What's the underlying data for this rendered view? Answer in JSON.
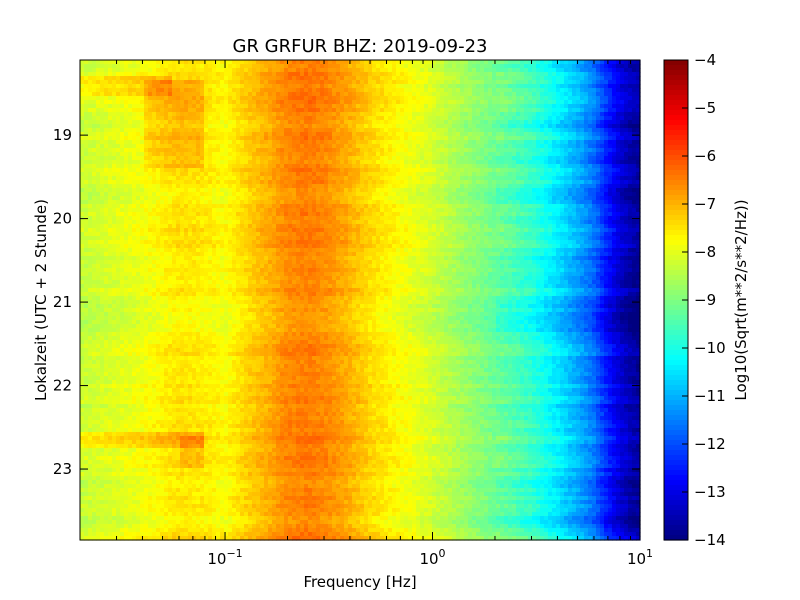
{
  "chart_data": {
    "type": "heatmap",
    "title": "GR GRFUR BHZ: 2019-09-23",
    "xlabel": "Frequency [Hz]",
    "ylabel": "Lokalzeit (UTC + 2 Stunde)",
    "x_scale": "log",
    "xlim": [
      0.02,
      10
    ],
    "x_ticks": [
      {
        "value": 0.1,
        "base": "10",
        "exp": "−1"
      },
      {
        "value": 1,
        "base": "10",
        "exp": "0"
      },
      {
        "value": 10,
        "base": "10",
        "exp": "1"
      }
    ],
    "ylim": [
      18.1,
      23.85
    ],
    "y_inverted": true,
    "y_ticks": [
      19,
      20,
      21,
      22,
      23
    ],
    "y_tick_labels": [
      "19",
      "20",
      "21",
      "22",
      "23"
    ],
    "colorbar": {
      "label": "Log10(Sqrt(m**2/s**2/Hz))",
      "colormap": "jet",
      "range": [
        -14,
        -4
      ],
      "ticks": [
        -4,
        -5,
        -6,
        -7,
        -8,
        -9,
        -10,
        -11,
        -12,
        -13,
        -14
      ],
      "tick_labels": [
        "−4",
        "−5",
        "−6",
        "−7",
        "−8",
        "−9",
        "−10",
        "−11",
        "−12",
        "−13",
        "−14"
      ]
    },
    "spectrum_profile": [
      {
        "freq": 0.02,
        "value": -8.3
      },
      {
        "freq": 0.04,
        "value": -7.9
      },
      {
        "freq": 0.06,
        "value": -7.5
      },
      {
        "freq": 0.08,
        "value": -7.6
      },
      {
        "freq": 0.1,
        "value": -7.8
      },
      {
        "freq": 0.13,
        "value": -7.3
      },
      {
        "freq": 0.17,
        "value": -6.9
      },
      {
        "freq": 0.2,
        "value": -6.6
      },
      {
        "freq": 0.25,
        "value": -6.5
      },
      {
        "freq": 0.3,
        "value": -6.6
      },
      {
        "freq": 0.4,
        "value": -7.0
      },
      {
        "freq": 0.5,
        "value": -7.4
      },
      {
        "freq": 0.7,
        "value": -7.8
      },
      {
        "freq": 1.0,
        "value": -8.2
      },
      {
        "freq": 1.5,
        "value": -8.8
      },
      {
        "freq": 2.0,
        "value": -9.2
      },
      {
        "freq": 3.0,
        "value": -9.8
      },
      {
        "freq": 4.0,
        "value": -10.5
      },
      {
        "freq": 5.0,
        "value": -11.1
      },
      {
        "freq": 6.0,
        "value": -11.7
      },
      {
        "freq": 7.0,
        "value": -12.6
      },
      {
        "freq": 8.0,
        "value": -13.2
      },
      {
        "freq": 9.0,
        "value": -13.6
      },
      {
        "freq": 10.0,
        "value": -13.8
      }
    ],
    "low_freq_bands": [
      {
        "time_start": 18.3,
        "time_end": 18.55,
        "freq_max": 0.055,
        "offset": 0.5
      },
      {
        "time_start": 18.35,
        "time_end": 19.4,
        "freq_start": 0.04,
        "freq_max": 0.08,
        "offset": 0.45
      },
      {
        "time_start": 22.55,
        "time_end": 22.75,
        "freq_max": 0.08,
        "offset": 0.5
      },
      {
        "time_start": 22.6,
        "time_end": 23.0,
        "freq_start": 0.06,
        "freq_max": 0.08,
        "offset": 0.35
      }
    ]
  }
}
